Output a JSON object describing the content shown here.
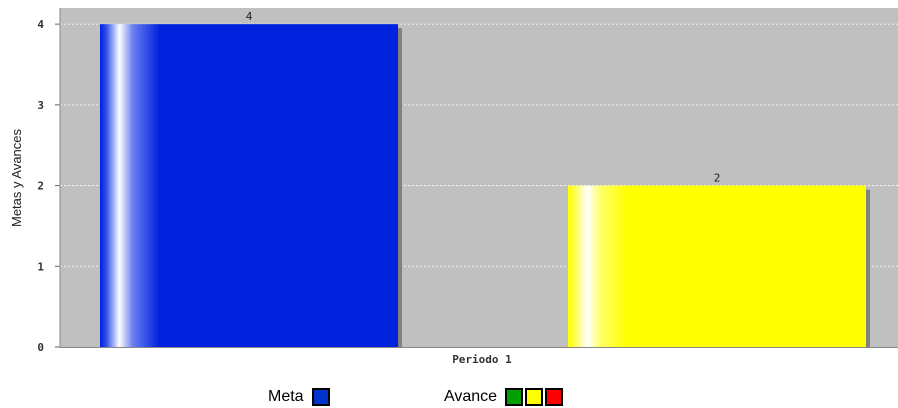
{
  "chart_data": {
    "type": "bar",
    "categories": [
      "Periodo 1"
    ],
    "series": [
      {
        "name": "Meta",
        "values": [
          4
        ],
        "color": "#0022dd"
      },
      {
        "name": "Avance",
        "values": [
          2
        ],
        "color": "#ffff00"
      }
    ],
    "data_labels": [
      "4",
      "2"
    ],
    "ylabel": "Metas y Avances",
    "xlabel": "",
    "ylim": [
      0,
      4.2
    ],
    "yticks": [
      "0",
      "1",
      "2",
      "3",
      "4"
    ],
    "grid": true,
    "plot_background": "#c0c0c0"
  },
  "legend": {
    "meta_label": "Meta",
    "meta_color": "#0033cc",
    "avance_label": "Avance",
    "avance_colors": [
      "#00a000",
      "#ffff00",
      "#ff0000"
    ]
  }
}
